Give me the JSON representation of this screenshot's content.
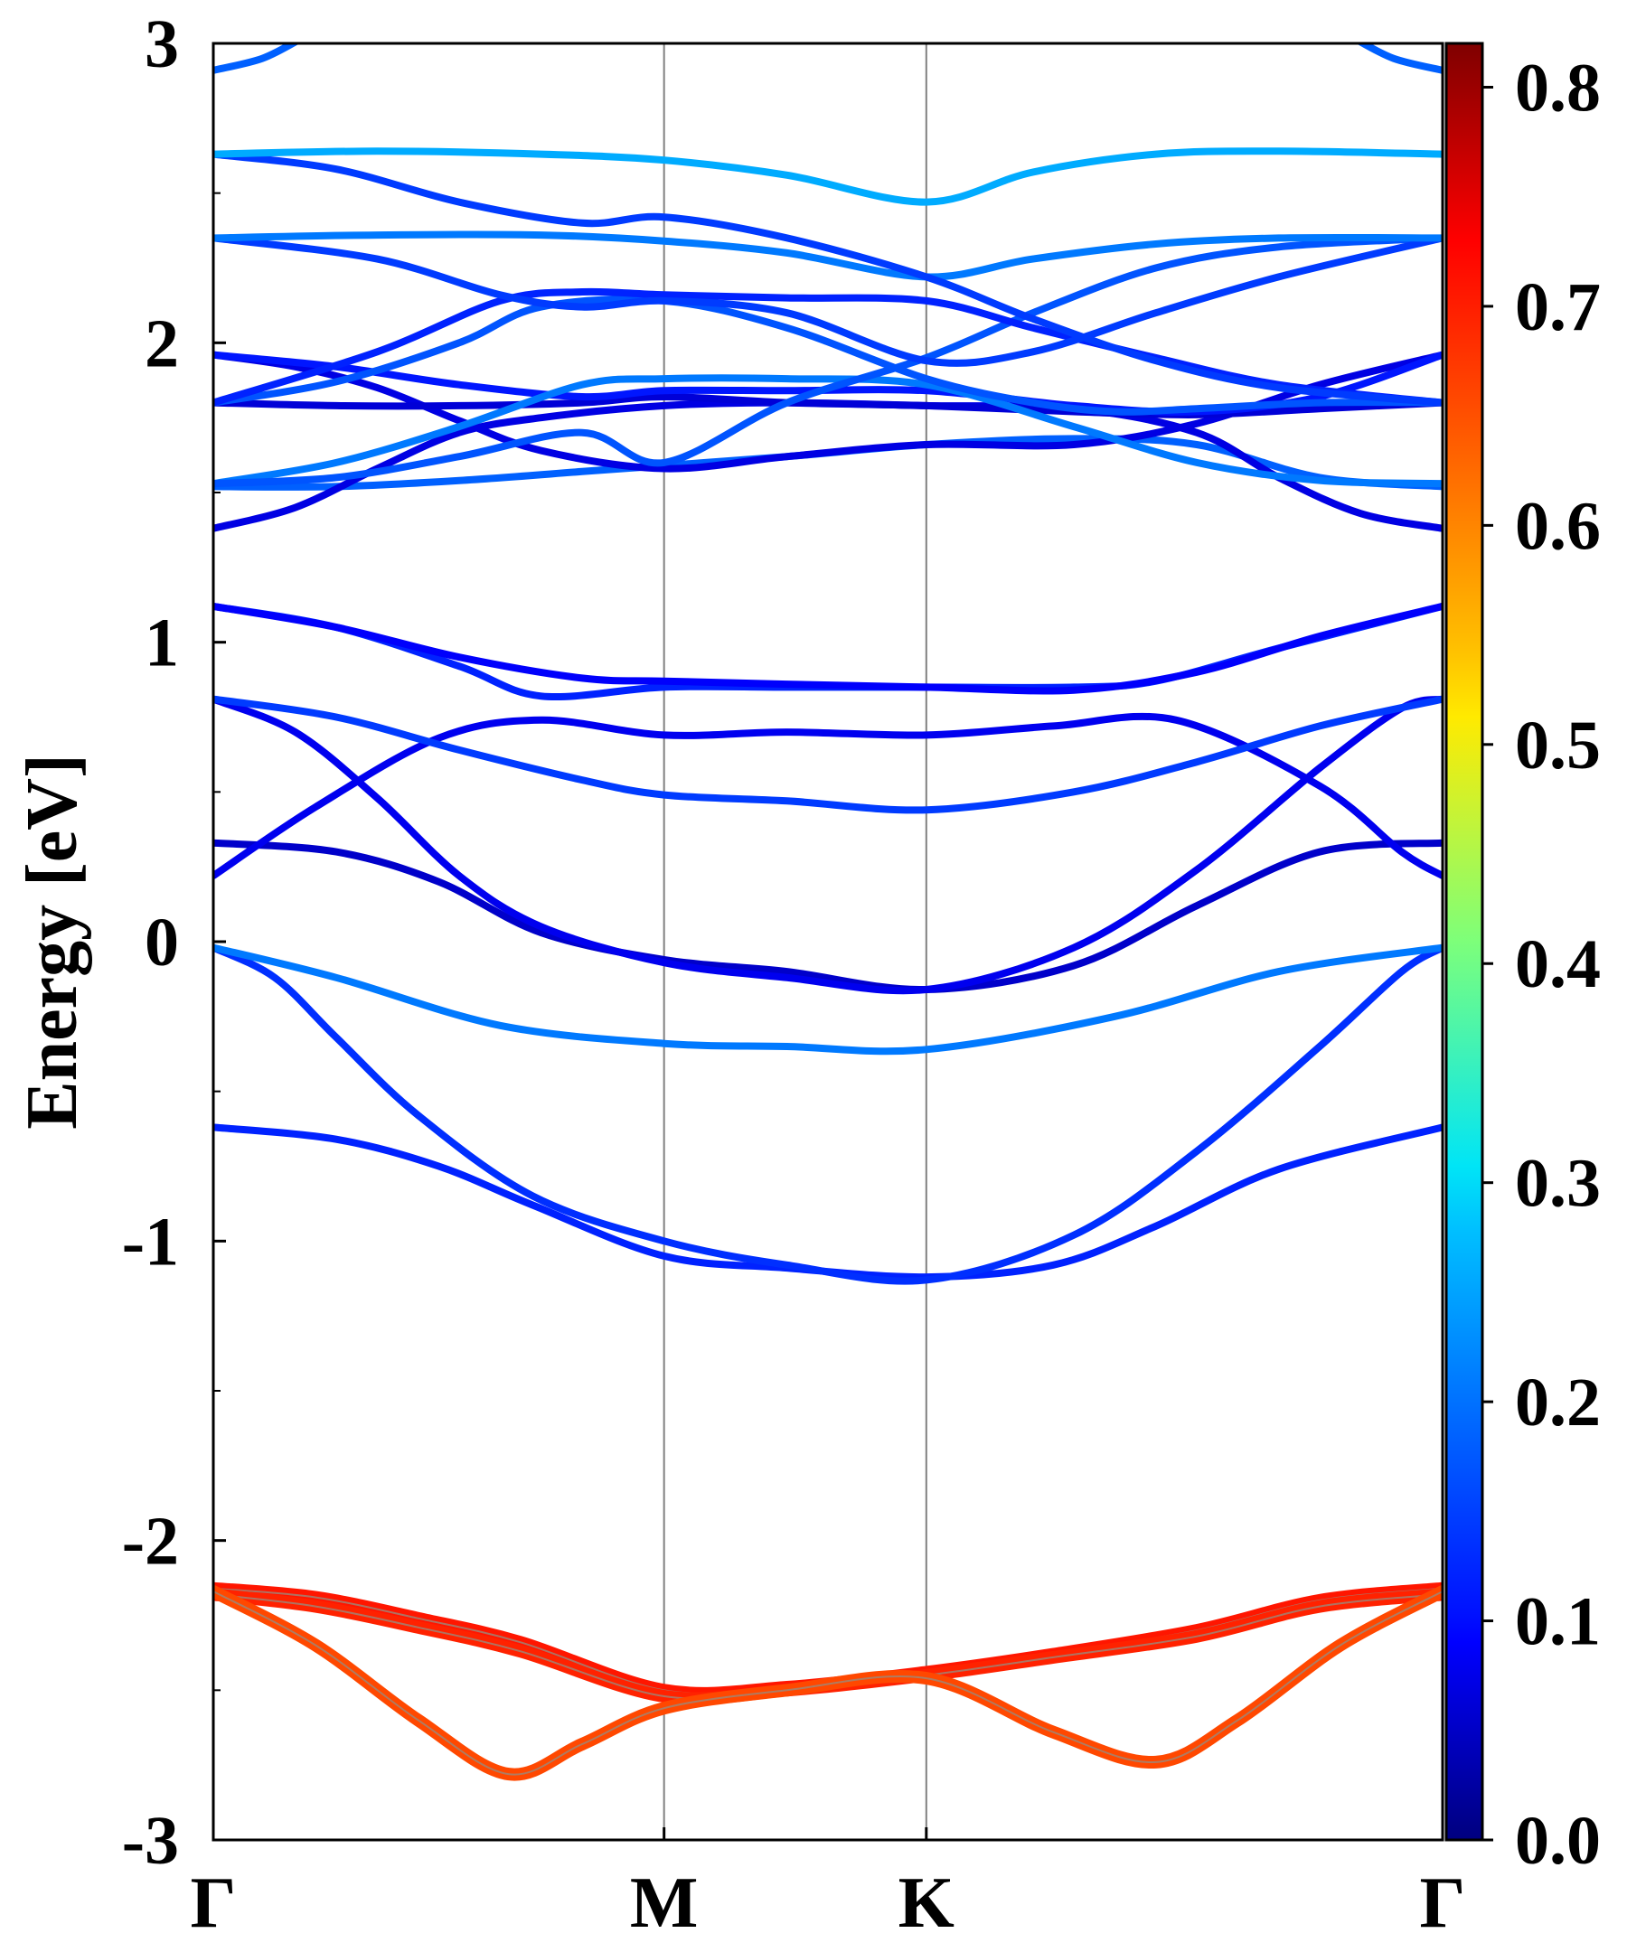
{
  "chart_data": {
    "type": "line",
    "title": "",
    "xlabel": "",
    "ylabel": "Energy [eV]",
    "ylim": [
      -3,
      3
    ],
    "yticks": [
      "3",
      "2",
      "1",
      "0",
      "-1",
      "-2",
      "-3"
    ],
    "kpoints": [
      {
        "label": "Γ",
        "x": 0
      },
      {
        "label": "M",
        "x": 1.1
      },
      {
        "label": "K",
        "x": 1.74
      },
      {
        "label": "Γ",
        "x": 3.0
      }
    ],
    "xlim": [
      0,
      3.0
    ],
    "grid": "vertical lines at high-symmetry points",
    "colorbar": {
      "cmap": "jet",
      "range": [
        0.0,
        0.82
      ],
      "ticks": [
        "0.8",
        "0.7",
        "0.6",
        "0.5",
        "0.4",
        "0.3",
        "0.2",
        "0.1",
        "0.0"
      ],
      "tick_values": [
        0.8,
        0.7,
        0.6,
        0.5,
        0.4,
        0.3,
        0.2,
        0.1,
        0.0
      ]
    },
    "series": [
      {
        "x": [
          0,
          0.3,
          0.55,
          0.78,
          1.1,
          1.4,
          1.74,
          2.05,
          2.3,
          2.6,
          3.0
        ],
        "y": [
          -0.62,
          -0.66,
          -0.75,
          -0.88,
          -1.05,
          -1.09,
          -1.12,
          -1.08,
          -0.95,
          -0.76,
          -0.62
        ],
        "c": 0.13
      },
      {
        "x": [
          0,
          0.15,
          0.3,
          0.5,
          0.78,
          1.1,
          1.4,
          1.74,
          2.1,
          2.4,
          2.7,
          2.9,
          3.0
        ],
        "y": [
          -0.02,
          -0.12,
          -0.32,
          -0.58,
          -0.85,
          -1.0,
          -1.08,
          -1.13,
          -0.98,
          -0.7,
          -0.35,
          -0.1,
          -0.02
        ],
        "c": 0.14
      },
      {
        "x": [
          0,
          0.3,
          0.7,
          1.1,
          1.4,
          1.74,
          2.2,
          2.6,
          3.0
        ],
        "y": [
          -0.02,
          -0.12,
          -0.28,
          -0.34,
          -0.35,
          -0.36,
          -0.25,
          -0.1,
          -0.02
        ],
        "c": 0.2
      },
      {
        "x": [
          0,
          0.3,
          0.55,
          0.8,
          1.1,
          1.4,
          1.74,
          2.1,
          2.4,
          2.7,
          3.0
        ],
        "y": [
          0.33,
          0.3,
          0.2,
          0.03,
          -0.06,
          -0.1,
          -0.16,
          -0.08,
          0.12,
          0.3,
          0.33
        ],
        "c": 0.06
      },
      {
        "x": [
          0,
          0.2,
          0.4,
          0.6,
          0.8,
          1.1,
          1.4,
          1.74,
          2.1,
          2.4,
          2.7,
          2.9,
          3.0
        ],
        "y": [
          0.81,
          0.7,
          0.48,
          0.22,
          0.05,
          -0.07,
          -0.12,
          -0.16,
          -0.02,
          0.24,
          0.58,
          0.78,
          0.81
        ],
        "c": 0.09
      },
      {
        "x": [
          0,
          0.25,
          0.55,
          0.8,
          1.1,
          1.4,
          1.74,
          2.05,
          2.35,
          2.7,
          2.9,
          3.0
        ],
        "y": [
          0.22,
          0.45,
          0.68,
          0.74,
          0.69,
          0.7,
          0.69,
          0.72,
          0.74,
          0.52,
          0.3,
          0.22
        ],
        "c": 0.09
      },
      {
        "x": [
          0,
          0.3,
          0.6,
          0.9,
          1.1,
          1.4,
          1.74,
          2.1,
          2.4,
          2.7,
          3.0
        ],
        "y": [
          0.81,
          0.75,
          0.64,
          0.54,
          0.49,
          0.47,
          0.44,
          0.5,
          0.6,
          0.72,
          0.81
        ],
        "c": 0.15
      },
      {
        "x": [
          0,
          0.3,
          0.6,
          0.8,
          1.1,
          1.4,
          1.74,
          2.1,
          2.3,
          2.6,
          3.0
        ],
        "y": [
          1.12,
          1.05,
          0.92,
          0.82,
          0.85,
          0.85,
          0.85,
          0.85,
          0.87,
          0.98,
          1.12
        ],
        "c": 0.13
      },
      {
        "x": [
          0,
          0.3,
          0.6,
          0.9,
          1.1,
          1.4,
          1.74,
          2.1,
          2.4,
          2.7,
          3.0
        ],
        "y": [
          1.12,
          1.05,
          0.95,
          0.88,
          0.87,
          0.86,
          0.85,
          0.84,
          0.9,
          1.02,
          1.12
        ],
        "c": 0.1
      },
      {
        "x": [
          0,
          0.3,
          0.6,
          0.9,
          1.1,
          1.4,
          1.74,
          2.1,
          2.4,
          2.7,
          3.0
        ],
        "y": [
          1.52,
          1.52,
          1.54,
          1.57,
          1.59,
          1.62,
          1.66,
          1.68,
          1.66,
          1.55,
          1.52
        ],
        "c": 0.18
      },
      {
        "x": [
          0,
          0.2,
          0.4,
          0.6,
          0.8,
          1.1,
          1.4,
          1.74,
          2.1,
          2.4,
          2.6,
          2.8,
          3.0
        ],
        "y": [
          1.38,
          1.45,
          1.58,
          1.7,
          1.75,
          1.79,
          1.8,
          1.79,
          1.78,
          1.7,
          1.55,
          1.43,
          1.38
        ],
        "c": 0.08
      },
      {
        "x": [
          0,
          0.2,
          0.4,
          0.6,
          0.8,
          1.1,
          1.4,
          1.74,
          2.1,
          2.4,
          2.7,
          3.0
        ],
        "y": [
          1.96,
          1.92,
          1.85,
          1.74,
          1.64,
          1.58,
          1.62,
          1.66,
          1.66,
          1.73,
          1.86,
          1.96
        ],
        "c": 0.08
      },
      {
        "x": [
          0,
          0.3,
          0.6,
          0.9,
          1.1,
          1.4,
          1.74,
          2.1,
          2.4,
          2.7,
          3.0
        ],
        "y": [
          1.8,
          1.79,
          1.79,
          1.8,
          1.82,
          1.8,
          1.79,
          1.77,
          1.76,
          1.78,
          1.8
        ],
        "c": 0.07
      },
      {
        "x": [
          0,
          0.3,
          0.6,
          0.9,
          1.1,
          1.4,
          1.74,
          2.1,
          2.4,
          2.7,
          3.0
        ],
        "y": [
          1.96,
          1.92,
          1.86,
          1.82,
          1.84,
          1.84,
          1.84,
          1.79,
          1.77,
          1.82,
          1.96
        ],
        "c": 0.12
      },
      {
        "x": [
          0,
          0.3,
          0.6,
          0.9,
          1.1,
          1.4,
          1.74,
          2.1,
          2.4,
          2.7,
          3.0
        ],
        "y": [
          1.53,
          1.6,
          1.72,
          1.86,
          1.88,
          1.88,
          1.86,
          1.72,
          1.6,
          1.54,
          1.53
        ],
        "c": 0.2
      },
      {
        "x": [
          0,
          0.3,
          0.6,
          0.9,
          1.1,
          1.4,
          1.74,
          2.0,
          2.3,
          2.6,
          3.0
        ],
        "y": [
          1.53,
          1.55,
          1.62,
          1.7,
          1.6,
          1.8,
          1.95,
          2.1,
          2.25,
          2.32,
          2.35
        ],
        "c": 0.17
      },
      {
        "x": [
          0,
          0.3,
          0.6,
          0.8,
          1.1,
          1.4,
          1.74,
          2.0,
          2.2,
          2.4,
          2.7,
          3.0
        ],
        "y": [
          1.8,
          1.87,
          2.0,
          2.12,
          2.14,
          2.05,
          1.88,
          1.8,
          1.77,
          1.78,
          1.8,
          1.8
        ],
        "c": 0.17
      },
      {
        "x": [
          0,
          0.4,
          0.7,
          0.9,
          1.1,
          1.4,
          1.74,
          2.0,
          2.3,
          2.6,
          3.0
        ],
        "y": [
          1.8,
          1.97,
          2.14,
          2.17,
          2.16,
          2.15,
          2.14,
          2.05,
          1.95,
          1.86,
          1.8
        ],
        "c": 0.13
      },
      {
        "x": [
          0,
          0.4,
          0.7,
          0.9,
          1.1,
          1.4,
          1.74,
          2.0,
          2.3,
          2.6,
          3.0
        ],
        "y": [
          2.35,
          2.28,
          2.16,
          2.12,
          2.14,
          2.1,
          1.94,
          1.97,
          2.1,
          2.22,
          2.35
        ],
        "c": 0.15
      },
      {
        "x": [
          0,
          0.4,
          0.8,
          1.1,
          1.4,
          1.74,
          2.0,
          2.3,
          2.6,
          3.0
        ],
        "y": [
          2.35,
          2.36,
          2.36,
          2.34,
          2.3,
          2.22,
          2.28,
          2.33,
          2.35,
          2.35
        ],
        "c": 0.2
      },
      {
        "x": [
          0,
          0.3,
          0.6,
          0.9,
          1.1,
          1.4,
          1.74,
          2.0,
          2.3,
          2.6,
          3.0
        ],
        "y": [
          2.63,
          2.58,
          2.47,
          2.4,
          2.42,
          2.35,
          2.22,
          2.08,
          1.94,
          1.85,
          1.8
        ],
        "c": 0.15
      },
      {
        "x": [
          0,
          0.4,
          0.8,
          1.1,
          1.4,
          1.74,
          2.0,
          2.3,
          2.6,
          3.0
        ],
        "y": [
          2.63,
          2.64,
          2.63,
          2.61,
          2.56,
          2.47,
          2.57,
          2.63,
          2.64,
          2.63
        ],
        "c": 0.24
      },
      {
        "x": [
          0,
          0.12,
          0.22
        ],
        "y": [
          2.91,
          2.95,
          3.02
        ],
        "c": 0.18
      },
      {
        "x": [
          2.78,
          2.88,
          3.0
        ],
        "y": [
          3.02,
          2.95,
          2.91
        ],
        "c": 0.18
      },
      {
        "x": [
          0,
          0.25,
          0.5,
          0.75,
          1.1,
          1.4,
          1.74,
          2.05,
          2.4,
          2.7,
          3.0
        ],
        "y": [
          -2.16,
          -2.19,
          -2.26,
          -2.34,
          -2.5,
          -2.49,
          -2.44,
          -2.38,
          -2.3,
          -2.2,
          -2.16
        ],
        "c": 0.7
      },
      {
        "x": [
          0,
          0.25,
          0.5,
          0.75,
          1.1,
          1.4,
          1.74,
          2.05,
          2.4,
          2.7,
          3.0
        ],
        "y": [
          -2.18,
          -2.22,
          -2.29,
          -2.37,
          -2.52,
          -2.5,
          -2.45,
          -2.39,
          -2.32,
          -2.22,
          -2.18
        ],
        "c": 0.69
      },
      {
        "x": [
          0,
          0.25,
          0.5,
          0.72,
          0.9,
          1.1,
          1.4,
          1.74,
          2.05,
          2.3,
          2.5,
          2.75,
          3.0
        ],
        "y": [
          -2.17,
          -2.35,
          -2.6,
          -2.78,
          -2.68,
          -2.56,
          -2.5,
          -2.46,
          -2.64,
          -2.74,
          -2.6,
          -2.35,
          -2.17
        ],
        "c": 0.66
      }
    ]
  }
}
